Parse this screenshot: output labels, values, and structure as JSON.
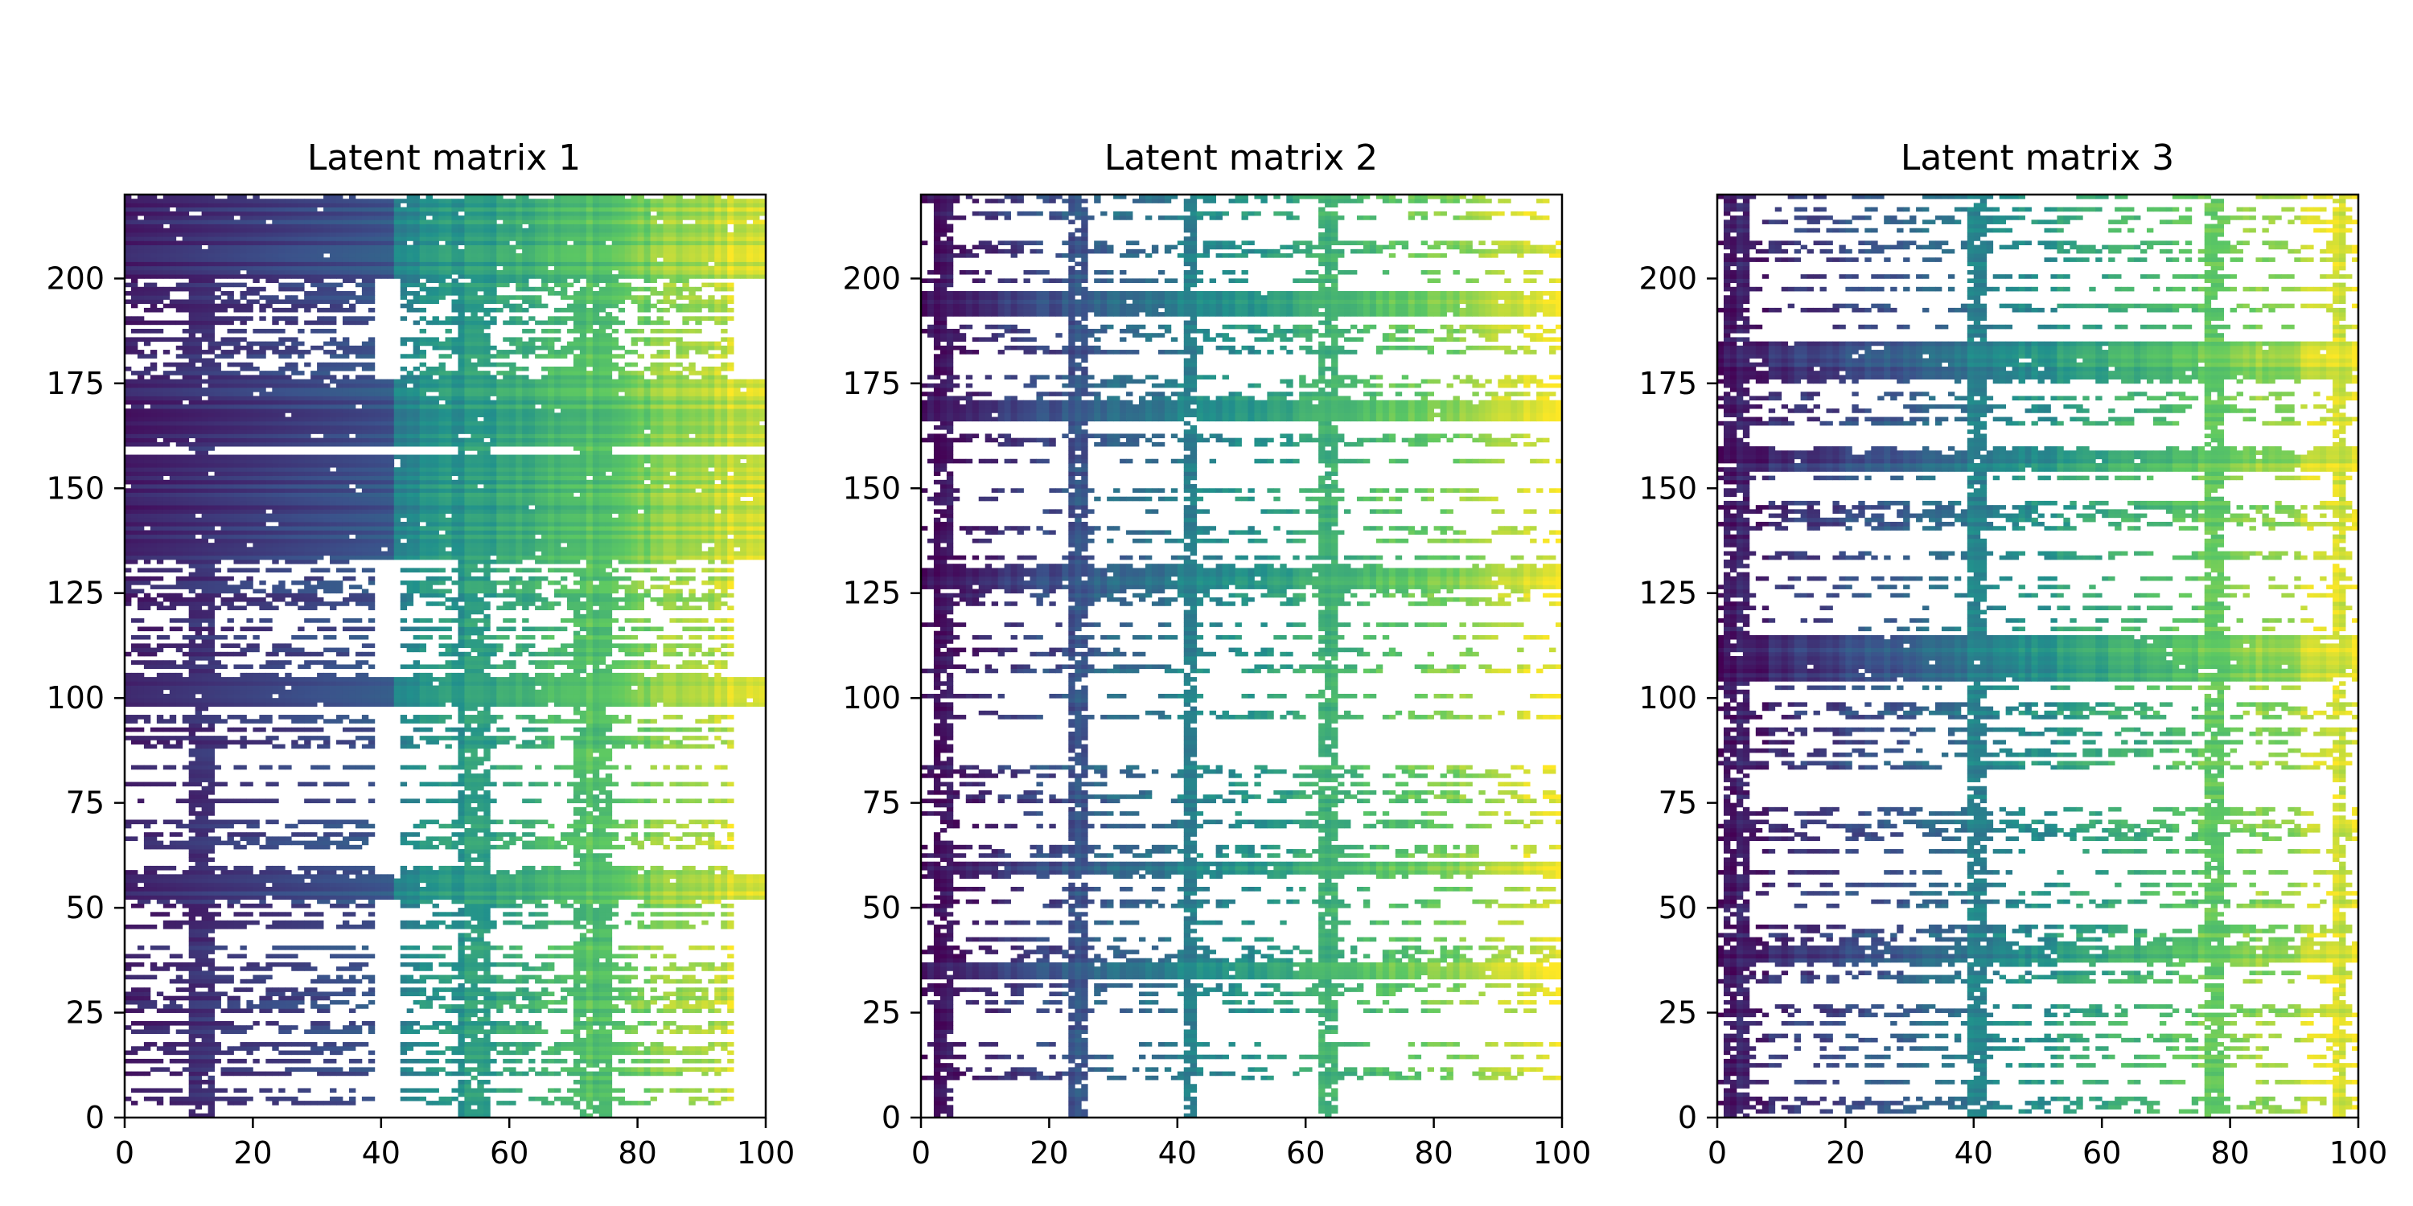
{
  "figure": {
    "colormap": "viridis",
    "colormap_stops": [
      "#440154",
      "#3b528b",
      "#21918c",
      "#5ec962",
      "#fde725"
    ],
    "axis_color": "#000000",
    "background": "#ffffff"
  },
  "chart_data": [
    {
      "type": "heatmap",
      "title": "Latent matrix 1",
      "xlabel": "",
      "ylabel": "",
      "xlim": [
        0,
        100
      ],
      "ylim": [
        0,
        220
      ],
      "xticks": [
        0,
        20,
        40,
        60,
        80,
        100
      ],
      "yticks": [
        0,
        25,
        50,
        75,
        100,
        125,
        150,
        175,
        200
      ],
      "xtick_labels": [
        "0",
        "20",
        "40",
        "60",
        "80",
        "100"
      ],
      "ytick_labels": [
        "0",
        "25",
        "50",
        "75",
        "100",
        "125",
        "150",
        "175",
        "200"
      ],
      "value_gradient": "increases left to right",
      "sparsity": "masked cells (white) scattered",
      "dense_rows": [
        [
          200,
          218
        ],
        [
          160,
          175
        ],
        [
          133,
          157
        ],
        [
          98,
          104
        ],
        [
          52,
          57
        ]
      ],
      "dense_columns": [
        [
          10,
          13
        ],
        [
          52,
          56
        ],
        [
          70,
          75
        ]
      ],
      "empty_column_bands": [
        [
          39,
          42
        ],
        [
          95,
          100
        ]
      ],
      "fill_density": 0.45
    },
    {
      "type": "heatmap",
      "title": "Latent matrix 2",
      "xlabel": "",
      "ylabel": "",
      "xlim": [
        0,
        100
      ],
      "ylim": [
        0,
        220
      ],
      "xticks": [
        0,
        20,
        40,
        60,
        80,
        100
      ],
      "yticks": [
        0,
        25,
        50,
        75,
        100,
        125,
        150,
        175,
        200
      ],
      "xtick_labels": [
        "0",
        "20",
        "40",
        "60",
        "80",
        "100"
      ],
      "ytick_labels": [
        "0",
        "25",
        "50",
        "75",
        "100",
        "125",
        "150",
        "175",
        "200"
      ],
      "value_gradient": "increases left to right",
      "sparsity": "masked cells (white) scattered",
      "dense_rows": [
        [
          191,
          196
        ],
        [
          166,
          170
        ],
        [
          126,
          130
        ],
        [
          58,
          60
        ],
        [
          33,
          36
        ]
      ],
      "dense_columns": [
        [
          41,
          42
        ],
        [
          62,
          64
        ],
        [
          23,
          25
        ],
        [
          2,
          4
        ]
      ],
      "empty_column_bands": [],
      "fill_density": 0.3
    },
    {
      "type": "heatmap",
      "title": "Latent matrix 3",
      "xlabel": "",
      "ylabel": "",
      "xlim": [
        0,
        100
      ],
      "ylim": [
        0,
        220
      ],
      "xticks": [
        0,
        20,
        40,
        60,
        80,
        100
      ],
      "yticks": [
        0,
        25,
        50,
        75,
        100,
        125,
        150,
        175,
        200
      ],
      "xtick_labels": [
        "0",
        "20",
        "40",
        "60",
        "80",
        "100"
      ],
      "ytick_labels": [
        "0",
        "25",
        "50",
        "75",
        "100",
        "125",
        "150",
        "175",
        "200"
      ],
      "value_gradient": "increases left to right",
      "sparsity": "masked cells (white) scattered",
      "dense_rows": [
        [
          176,
          184
        ],
        [
          104,
          114
        ],
        [
          37,
          40
        ],
        [
          154,
          158
        ]
      ],
      "dense_columns": [
        [
          39,
          41
        ],
        [
          96,
          97
        ],
        [
          1,
          4
        ],
        [
          76,
          78
        ]
      ],
      "empty_column_bands": [],
      "fill_density": 0.33
    }
  ]
}
